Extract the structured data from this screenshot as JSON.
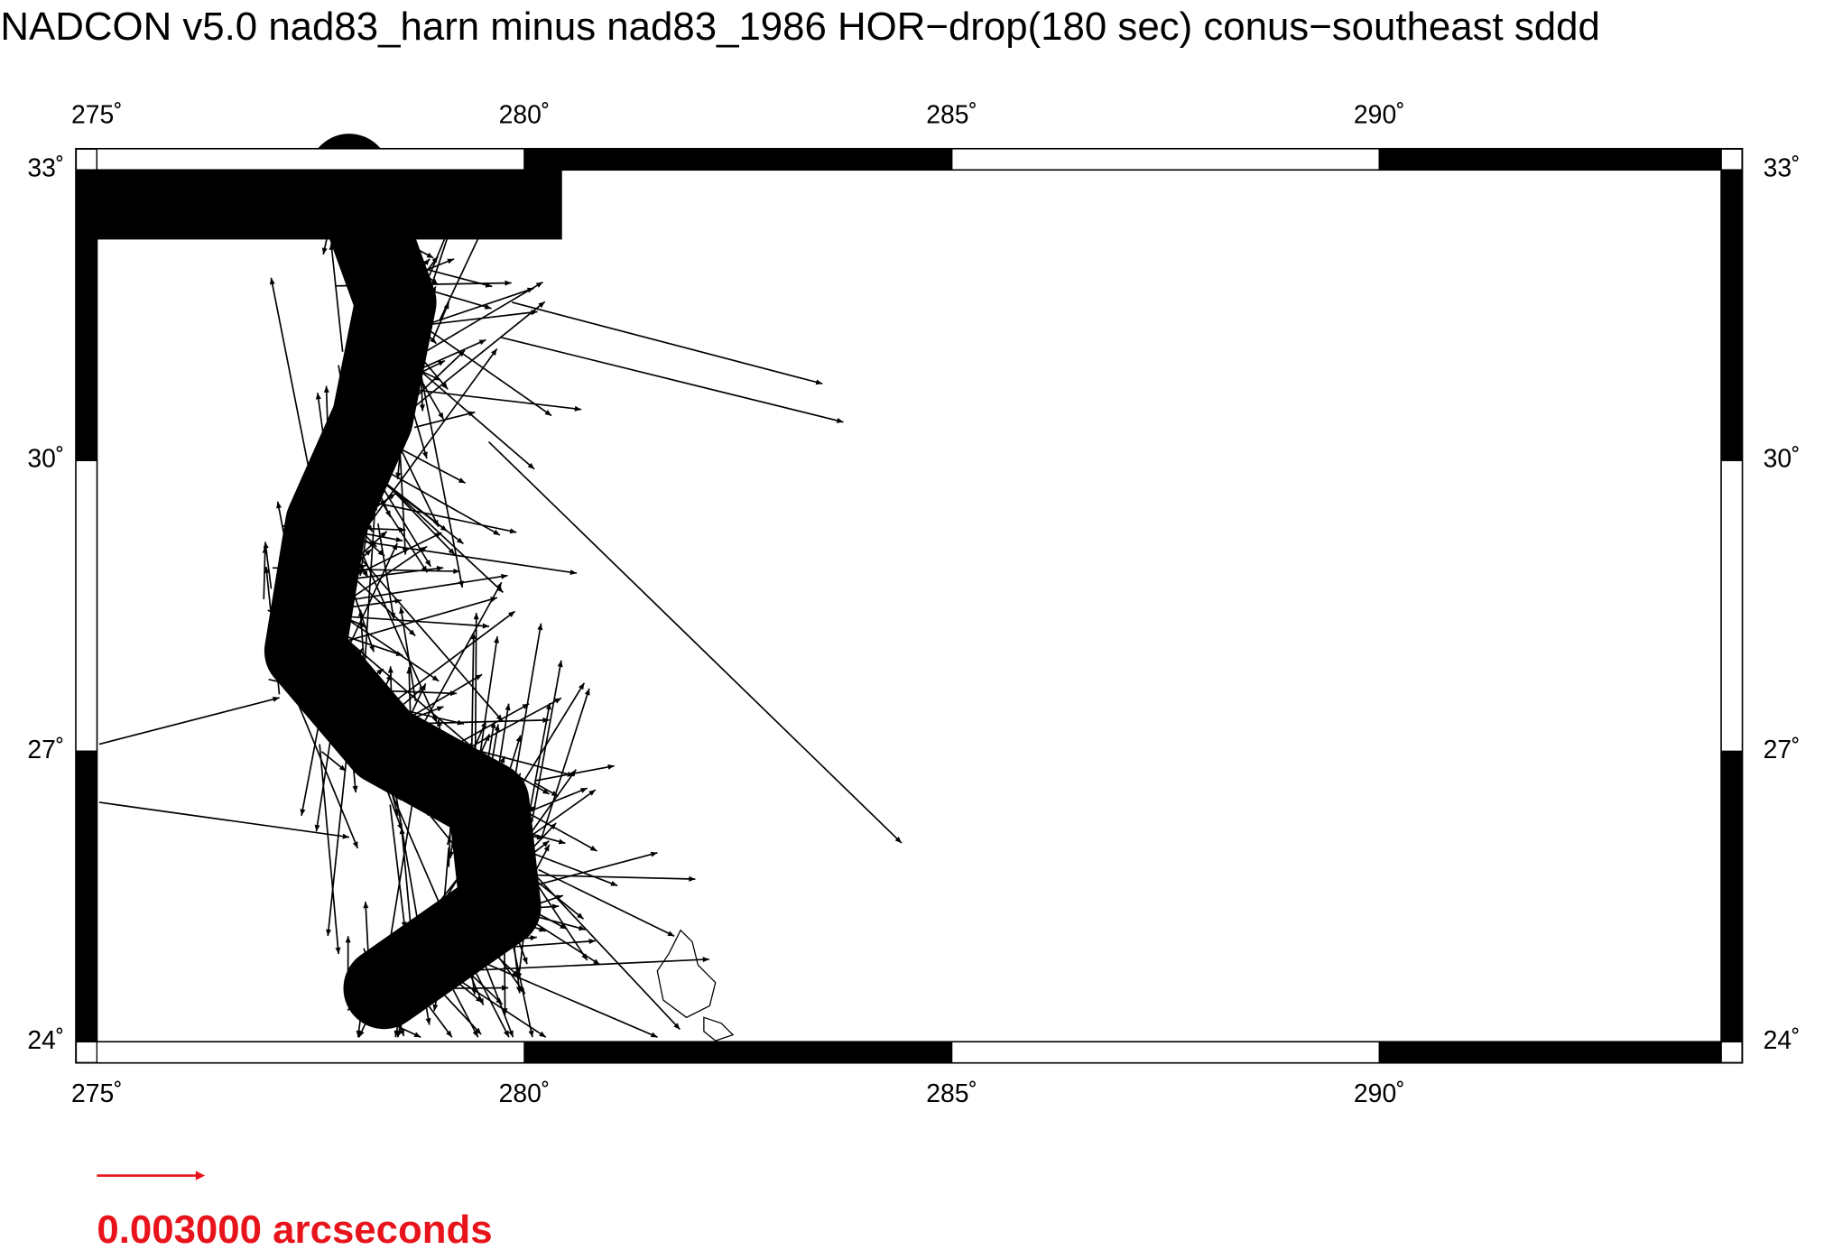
{
  "title": "NADCON v5.0 nad83_harn minus nad83_1986 HOR−drop(180 sec) conus−southeast sddd",
  "map": {
    "lonlim": [
      275,
      294
    ],
    "latlim": [
      24,
      33
    ],
    "lon_ticks": [
      {
        "value": 275,
        "label": "275˚"
      },
      {
        "value": 280,
        "label": "280˚"
      },
      {
        "value": 285,
        "label": "285˚"
      },
      {
        "value": 290,
        "label": "290˚"
      }
    ],
    "lat_ticks": [
      {
        "value": 24,
        "label": "24˚"
      },
      {
        "value": 27,
        "label": "27˚"
      },
      {
        "value": 30,
        "label": "30˚"
      },
      {
        "value": 33,
        "label": "33˚"
      }
    ]
  },
  "legend": {
    "label": "0.003000 arcseconds",
    "color": "#e8141b"
  }
}
